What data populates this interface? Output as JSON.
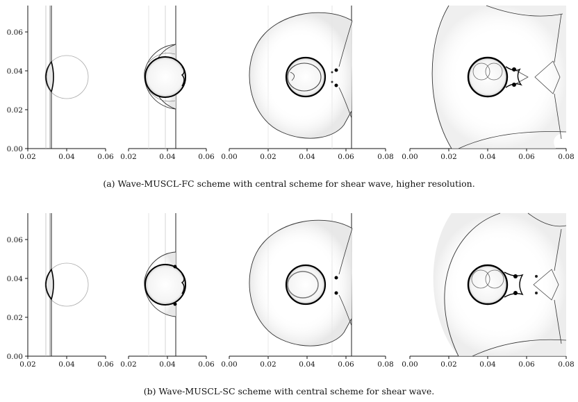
{
  "captions": {
    "a": "(a)  Wave-MUSCL-FC scheme with central scheme for shear wave, higher resolution.",
    "b": "(b)  Wave-MUSCL-SC scheme with central scheme for shear wave."
  },
  "y_ticks": [
    "0.00",
    "0.02",
    "0.04",
    "0.06"
  ],
  "x_ticks": {
    "p1": [
      "0.02",
      "0.04",
      "0.06"
    ],
    "p2": [
      "0.02",
      "0.04",
      "0.06"
    ],
    "p3": [
      "0.00",
      "0.02",
      "0.04",
      "0.06",
      "0.08"
    ],
    "p4": [
      "0.00",
      "0.02",
      "0.04",
      "0.06",
      "0.08"
    ]
  },
  "colors": {
    "axis": "#111111",
    "bubble": "#000000",
    "wave": "#444444"
  }
}
